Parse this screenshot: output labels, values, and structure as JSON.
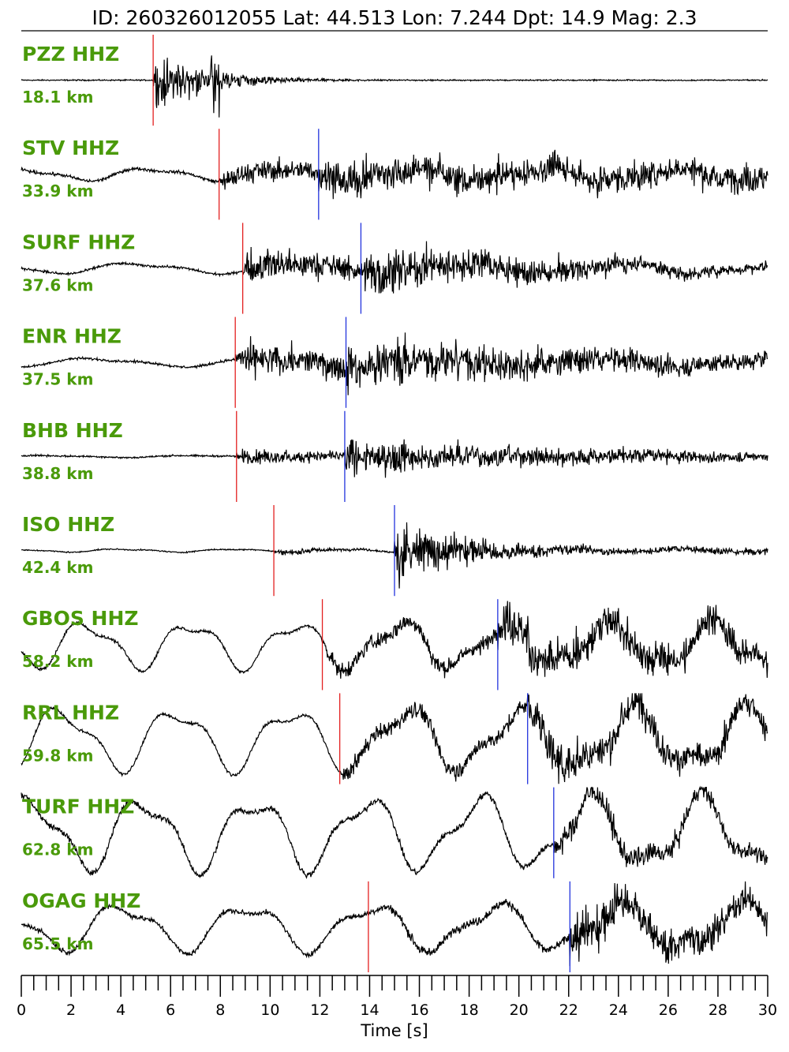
{
  "title": "ID: 260326012055 Lat:  44.513 Lon:   7.244 Dpt:    14.9 Mag:   2.3",
  "colors": {
    "label": "#4a9a0a",
    "trace": "#000000",
    "p_pick": "#e32020",
    "s_pick": "#2233dd"
  },
  "chart_data": {
    "type": "line",
    "title": "ID: 260326012055 Lat:  44.513 Lon:   7.244 Dpt:    14.9 Mag:   2.3",
    "xlabel": "Time [s]",
    "ylabel": "",
    "xlim": [
      0,
      30
    ],
    "x_ticks": [
      "0",
      "2",
      "4",
      "6",
      "8",
      "10",
      "12",
      "14",
      "16",
      "18",
      "20",
      "22",
      "24",
      "26",
      "28",
      "30"
    ],
    "minor_tick_step": 0.5,
    "series": [
      {
        "name": "PZZ HHZ",
        "distance": "18.1 km",
        "p_pick": 5.3,
        "s_pick": null,
        "pre_noise": 0.02,
        "low_amp": 0.0,
        "low_period": 8,
        "burst": 1.0,
        "coda_decay": 0.45,
        "s_amp": 0.0
      },
      {
        "name": "STV HHZ",
        "distance": "33.9 km",
        "p_pick": 7.95,
        "s_pick": 11.95,
        "pre_noise": 0.05,
        "low_amp": 0.12,
        "low_period": 5.3,
        "burst": 0.35,
        "coda_decay": 0.0,
        "s_amp": 0.55
      },
      {
        "name": "SURF HHZ",
        "distance": "37.6 km",
        "p_pick": 8.9,
        "s_pick": 13.65,
        "pre_noise": 0.04,
        "low_amp": 0.1,
        "low_period": 6.5,
        "burst": 0.6,
        "coda_decay": 0.12,
        "s_amp": 0.75
      },
      {
        "name": "ENR HHZ",
        "distance": "37.5 km",
        "p_pick": 8.6,
        "s_pick": 13.05,
        "pre_noise": 0.04,
        "low_amp": 0.08,
        "low_period": 6.8,
        "burst": 0.55,
        "coda_decay": 0.08,
        "s_amp": 0.7
      },
      {
        "name": "BHB HHZ",
        "distance": "38.8 km",
        "p_pick": 8.65,
        "s_pick": 13.0,
        "pre_noise": 0.03,
        "low_amp": 0.02,
        "low_period": 6.0,
        "burst": 0.25,
        "coda_decay": 0.1,
        "s_amp": 0.55
      },
      {
        "name": "ISO HHZ",
        "distance": "42.4 km",
        "p_pick": 10.15,
        "s_pick": 15.0,
        "pre_noise": 0.02,
        "low_amp": 0.03,
        "low_period": 4.5,
        "burst": 0.1,
        "coda_decay": 0.3,
        "s_amp": 0.9
      },
      {
        "name": "GBOS HHZ",
        "distance": "58.2 km",
        "p_pick": 12.1,
        "s_pick": 19.15,
        "pre_noise": 0.05,
        "low_amp": 0.45,
        "low_period": 4.2,
        "burst": 0.25,
        "coda_decay": 0.0,
        "s_amp": 0.75
      },
      {
        "name": "RRL HHZ",
        "distance": "59.8 km",
        "p_pick": 12.8,
        "s_pick": 20.35,
        "pre_noise": 0.05,
        "low_amp": 0.6,
        "low_period": 4.6,
        "burst": 0.25,
        "coda_decay": 0.0,
        "s_amp": 0.65
      },
      {
        "name": "TURF HHZ",
        "distance": "62.8 km",
        "p_pick": null,
        "s_pick": 21.4,
        "pre_noise": 0.1,
        "low_amp": 0.7,
        "low_period": 4.5,
        "burst": 0.0,
        "coda_decay": 0.0,
        "s_amp": 0.45
      },
      {
        "name": "OGAG HHZ",
        "distance": "65.5 km",
        "p_pick": 13.95,
        "s_pick": 22.05,
        "pre_noise": 0.08,
        "low_amp": 0.45,
        "low_period": 5.0,
        "burst": 0.12,
        "coda_decay": 0.0,
        "s_amp": 0.8
      }
    ]
  }
}
